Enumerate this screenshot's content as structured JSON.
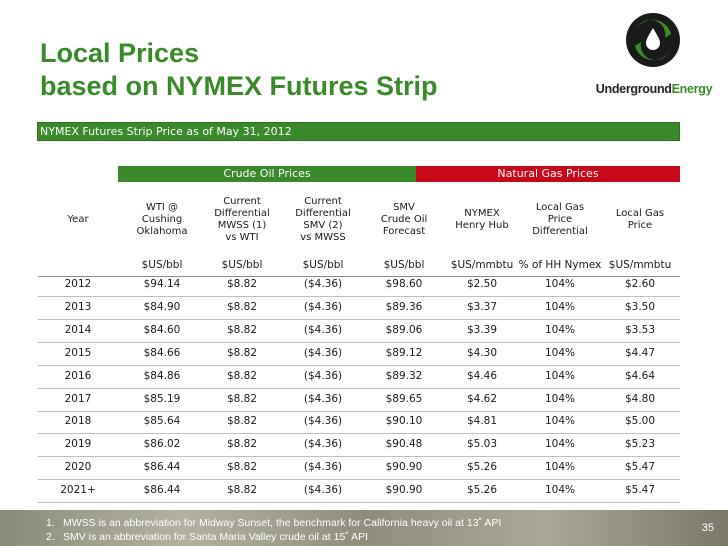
{
  "title": {
    "line1": "Local Prices",
    "line2": "based on NYMEX Futures Strip"
  },
  "logo": {
    "word1": "Underground",
    "word2": "Energy",
    "icon": "oil-drop-swirl-icon",
    "colors": {
      "mark": "#1a1a1a",
      "accent": "#3a8a2b",
      "drop": "#ffffff"
    }
  },
  "banner": "NYMEX Futures Strip Price as of May 31, 2012",
  "groups": {
    "oil": "Crude Oil Prices",
    "gas": "Natural Gas Prices"
  },
  "headers": [
    "Year",
    "WTI @\nCushing\nOklahoma",
    "Current\nDifferential\nMWSS (1)\nvs WTI",
    "Current\nDifferential\nSMV (2)\nvs MWSS",
    "SMV\nCrude Oil\nForecast",
    "NYMEX\nHenry Hub",
    "Local Gas\nPrice\nDifferential",
    "Local Gas\nPrice"
  ],
  "units": [
    "",
    "$US/bbl",
    "$US/bbl",
    "$US/bbl",
    "$US/bbl",
    "$US/mmbtu",
    "% of HH Nymex",
    "$US/mmbtu"
  ],
  "rows": [
    [
      "2012",
      "$94.14",
      "$8.82",
      "($4.36)",
      "$98.60",
      "$2.50",
      "104%",
      "$2.60"
    ],
    [
      "2013",
      "$84.90",
      "$8.82",
      "($4.36)",
      "$89.36",
      "$3.37",
      "104%",
      "$3.50"
    ],
    [
      "2014",
      "$84.60",
      "$8.82",
      "($4.36)",
      "$89.06",
      "$3.39",
      "104%",
      "$3.53"
    ],
    [
      "2015",
      "$84.66",
      "$8.82",
      "($4.36)",
      "$89.12",
      "$4.30",
      "104%",
      "$4.47"
    ],
    [
      "2016",
      "$84.86",
      "$8.82",
      "($4.36)",
      "$89.32",
      "$4.46",
      "104%",
      "$4.64"
    ],
    [
      "2017",
      "$85.19",
      "$8.82",
      "($4.36)",
      "$89.65",
      "$4.62",
      "104%",
      "$4.80"
    ],
    [
      "2018",
      "$85.64",
      "$8.82",
      "($4.36)",
      "$90.10",
      "$4.81",
      "104%",
      "$5.00"
    ],
    [
      "2019",
      "$86.02",
      "$8.82",
      "($4.36)",
      "$90.48",
      "$5.03",
      "104%",
      "$5.23"
    ],
    [
      "2020",
      "$86.44",
      "$8.82",
      "($4.36)",
      "$90.90",
      "$5.26",
      "104%",
      "$5.47"
    ],
    [
      "2021+",
      "$86.44",
      "$8.82",
      "($4.36)",
      "$90.90",
      "$5.26",
      "104%",
      "$5.47"
    ]
  ],
  "footnotes": [
    {
      "num": "1.",
      "text": "MWSS is an abbreviation for Midway Sunset, the benchmark for California heavy oil at 13˚ API"
    },
    {
      "num": "2.",
      "text": "SMV is an abbreviation for Santa Maria Valley crude oil at 15˚ API"
    }
  ],
  "page_number": "35",
  "colors": {
    "title_green": "#3a8a2b",
    "oil_header": "#3a8a2b",
    "gas_header": "#c8081b",
    "footer_band": "#9d9b8b"
  }
}
